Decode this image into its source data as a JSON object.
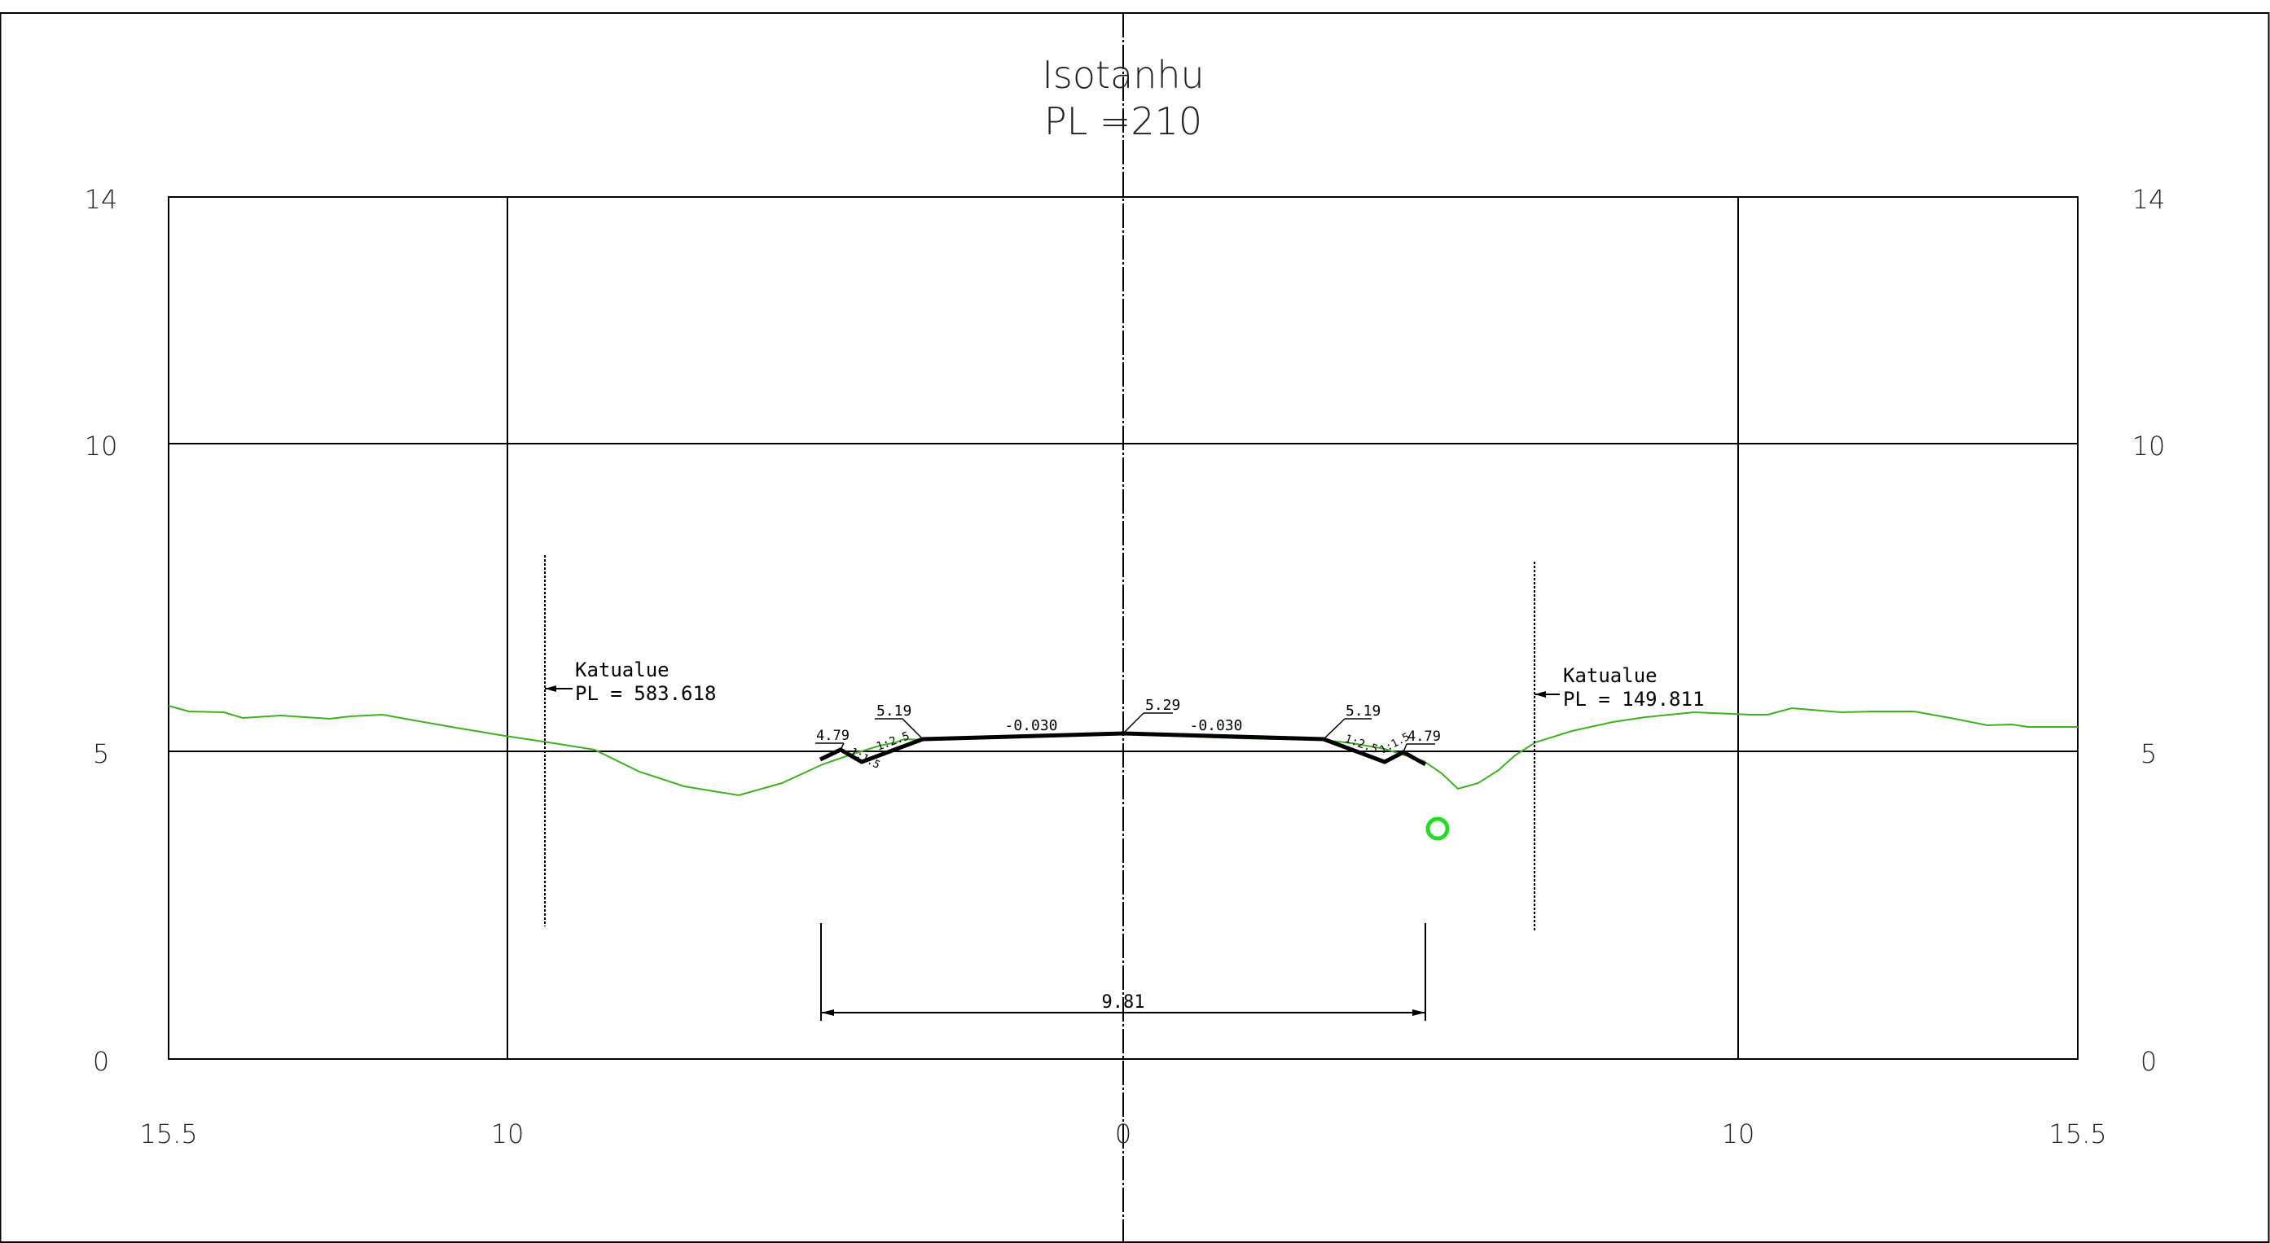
{
  "drawing": {
    "title": "Isotanhu",
    "subtitle": "PL =210",
    "y_axis_labels": [
      "14",
      "10",
      "5",
      "0"
    ],
    "x_axis_labels": [
      "15.5",
      "10",
      "0",
      "10",
      "15.5"
    ],
    "left_boundary": {
      "name": "Katualue",
      "pl": "PL = 583.618"
    },
    "right_boundary": {
      "name": "Katualue",
      "pl": "PL = 149.811"
    },
    "dimension": "9.81",
    "annotations": {
      "center_elevation": "5.29",
      "left_slope": "-0.030",
      "right_slope": "-0.030",
      "left_shoulder_elevation": "5.19",
      "right_shoulder_elevation": "5.19",
      "left_ditch_elevation": "4.79",
      "right_ditch_elevation": "4.79",
      "left_ratio_inner": "1:2.5",
      "left_ratio_outer": "1:1.5",
      "right_ratio_inner": "1:2.5",
      "right_ratio_outer": "1:1.5"
    },
    "colors": {
      "terrain": "#3cb21e",
      "design": "#000000",
      "marker": "#22dd22",
      "grid": "#000000"
    }
  }
}
